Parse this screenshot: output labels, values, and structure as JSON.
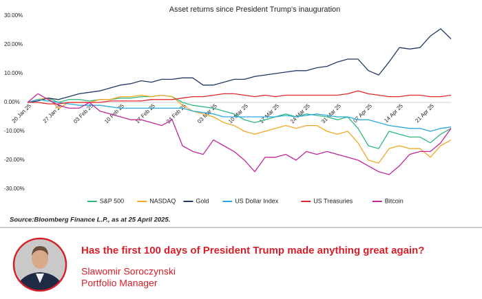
{
  "chart_data": {
    "type": "line",
    "title": "Asset returns since President Trump's inauguration",
    "categories": [
      "20 Jan 25",
      null,
      null,
      "27 Jan 25",
      null,
      null,
      "03 Feb 25",
      null,
      null,
      "10 Feb 25",
      null,
      null,
      "17 Feb 25",
      null,
      null,
      "24 Feb 25",
      null,
      null,
      "03 Mar 25",
      null,
      null,
      "10 Mar 25",
      null,
      null,
      "17 Mar 25",
      null,
      null,
      "24 Mar 25",
      null,
      null,
      "31 Mar 25",
      null,
      null,
      "07 Apr 25",
      null,
      null,
      "14 Apr 25",
      null,
      null,
      "21 Apr 25",
      null,
      null
    ],
    "series": [
      {
        "name": "S&P 500",
        "color": "#2db87d",
        "values": [
          0,
          1,
          1.5,
          0,
          1,
          1,
          0.5,
          1,
          1,
          1.5,
          1.5,
          2,
          2,
          2.5,
          2,
          0,
          -1,
          -1.5,
          -2,
          -3,
          -4,
          -6,
          -7,
          -6,
          -5,
          -4,
          -5,
          -4,
          -4.5,
          -5,
          -6,
          -5,
          -9,
          -15,
          -16,
          -10,
          -11,
          -12,
          -12,
          -14,
          -11,
          -9
        ]
      },
      {
        "name": "NASDAQ",
        "color": "#f5a623",
        "values": [
          0,
          1,
          1.5,
          -2,
          0,
          0,
          0,
          1,
          1,
          2,
          2,
          2.5,
          2,
          2.5,
          2,
          -1,
          -3,
          -4,
          -5,
          -7,
          -8,
          -10,
          -11,
          -10,
          -9,
          -8,
          -9,
          -8,
          -8,
          -10,
          -11,
          -10,
          -14,
          -20,
          -21,
          -16,
          -15,
          -16,
          -16,
          -19,
          -15,
          -13
        ]
      },
      {
        "name": "Gold",
        "color": "#1f3864",
        "values": [
          0,
          0.5,
          1.5,
          1,
          2,
          3,
          3.5,
          4,
          5,
          6,
          6.5,
          7.5,
          7,
          8,
          8,
          8.5,
          8.5,
          6,
          6,
          7,
          8,
          8,
          9,
          9.5,
          10,
          10.5,
          11,
          11,
          12,
          12.5,
          14,
          15,
          15,
          11,
          9.5,
          14,
          19,
          18.5,
          19,
          23,
          25.5,
          22
        ]
      },
      {
        "name": "US Dollar Index",
        "color": "#29a9e0",
        "values": [
          0,
          1,
          0.5,
          0,
          -0.5,
          -1,
          -1,
          -1,
          -1.5,
          -2,
          -2,
          -2,
          -2,
          -2,
          -2,
          -2,
          -3,
          -3.5,
          -4,
          -5,
          -5,
          -5,
          -5,
          -5,
          -5,
          -4.5,
          -5,
          -4.5,
          -4,
          -4.5,
          -5,
          -5,
          -6,
          -6,
          -7,
          -8,
          -8.5,
          -9,
          -9,
          -10,
          -9,
          -8.5
        ]
      },
      {
        "name": "US Treasuries",
        "color": "#e0262b",
        "values": [
          0,
          0,
          -0.5,
          -0.5,
          0,
          0,
          0,
          0,
          0.5,
          0.5,
          0.5,
          0.5,
          1,
          1,
          1,
          1.5,
          2,
          2,
          2.5,
          3,
          3,
          2.5,
          2,
          2.5,
          2,
          2.5,
          2.5,
          2.5,
          2.5,
          2.5,
          2.5,
          3,
          4,
          3,
          2.5,
          2,
          2,
          2.5,
          2.5,
          2,
          2,
          2.5
        ]
      },
      {
        "name": "Bitcoin",
        "color": "#c2259a",
        "values": [
          0,
          3,
          1,
          -1,
          -2,
          -2,
          0,
          -3,
          -4,
          -5,
          -6,
          -6,
          -7,
          -8,
          -6,
          -15,
          -17,
          -18,
          -13,
          -15,
          -17,
          -20,
          -24,
          -19,
          -19,
          -18,
          -20,
          -17,
          -18,
          -17,
          -18,
          -19,
          -20,
          -22,
          -24,
          -25,
          -22,
          -18,
          -17,
          -17,
          -14,
          -9
        ]
      }
    ],
    "ylim": [
      -30,
      30
    ],
    "yticks": [
      {
        "value": -30,
        "label": "-30.00%"
      },
      {
        "value": -20,
        "label": "-20.00%"
      },
      {
        "value": -10,
        "label": "-10.00%"
      },
      {
        "value": 0,
        "label": "0.00%"
      },
      {
        "value": 10,
        "label": "10.00%"
      },
      {
        "value": 20,
        "label": "20.00%"
      },
      {
        "value": 30,
        "label": "30.00%"
      }
    ],
    "grid": false,
    "legend": "bottom"
  },
  "source": "Source:Bloomberg Finance L.P., as at 25 April 2025.",
  "footer": {
    "title": "Has the first 100 days of President Trump made anything great again?",
    "name": "Slawomir Soroczynski",
    "role": "Portfolio Manager"
  }
}
